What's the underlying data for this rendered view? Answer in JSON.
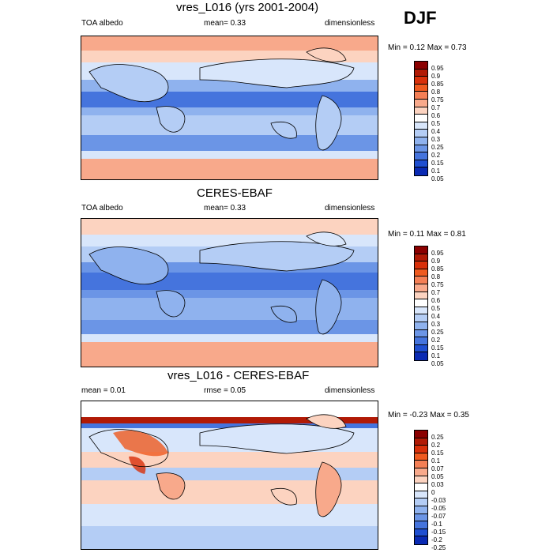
{
  "season": "DJF",
  "panels": [
    {
      "title": "vres_L016 (yrs 2001-2004)",
      "left": "TOA albedo",
      "center": "mean=   0.33",
      "right": "dimensionless",
      "minmax": "Min =  0.12 Max =  0.73",
      "levels": [
        "0.95",
        "0.9",
        "0.85",
        "0.8",
        "0.75",
        "0.7",
        "0.6",
        "0.5",
        "0.4",
        "0.3",
        "0.25",
        "0.2",
        "0.15",
        "0.1",
        "0.05"
      ]
    },
    {
      "title": "CERES-EBAF",
      "left": "TOA albedo",
      "center": "mean=   0.33",
      "right": "dimensionless",
      "minmax": "Min =  0.11 Max =  0.81",
      "levels": [
        "0.95",
        "0.9",
        "0.85",
        "0.8",
        "0.75",
        "0.7",
        "0.6",
        "0.5",
        "0.4",
        "0.3",
        "0.25",
        "0.2",
        "0.15",
        "0.1",
        "0.05"
      ]
    },
    {
      "title": "vres_L016 - CERES-EBAF",
      "left": "mean =   0.01",
      "center": "rmse =  0.05",
      "right": "dimensionless",
      "minmax": "Min = -0.23 Max =  0.35",
      "levels": [
        "0.25",
        "0.2",
        "0.15",
        "0.1",
        "0.07",
        "0.05",
        "0.03",
        "0",
        "-0.03",
        "-0.05",
        "-0.07",
        "-0.1",
        "-0.15",
        "-0.2",
        "-0.25"
      ]
    }
  ],
  "colors": {
    "scale": [
      "#8b0000",
      "#b11a05",
      "#d8300a",
      "#ef5a1f",
      "#f47f55",
      "#f8a98b",
      "#fcd3c0",
      "#ffffff",
      "#d8e6fb",
      "#b4cdf5",
      "#8fb2ee",
      "#6b95e6",
      "#4574dd",
      "#1f4fd1",
      "#0a2ab3"
    ]
  }
}
